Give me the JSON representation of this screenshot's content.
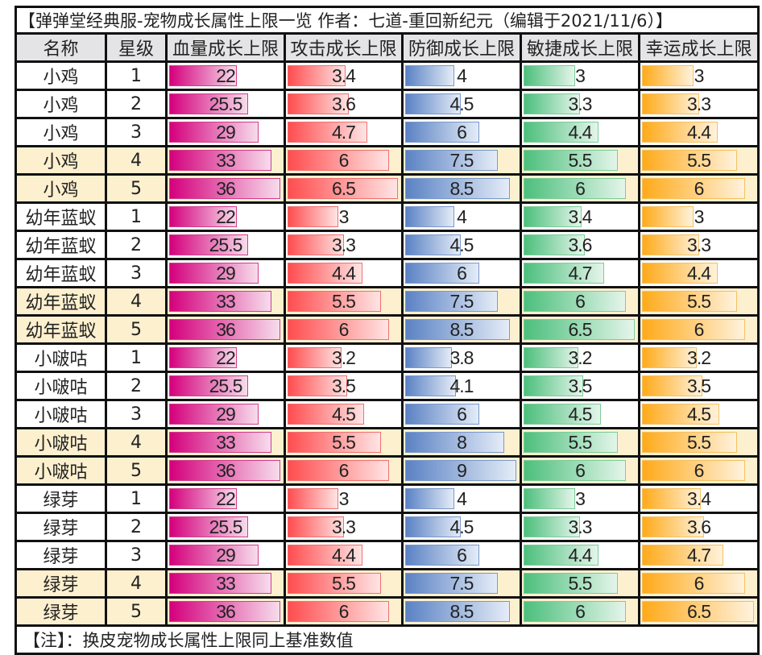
{
  "title": "【弹弹堂经典服-宠物成长属性上限一览 作者：七道-重回新纪元（编辑于2021/11/6）】",
  "headers": [
    "名称",
    "星级",
    "血量成长上限",
    "攻击成长上限",
    "防御成长上限",
    "敏捷成长上限",
    "幸运成长上限"
  ],
  "bar_colors": [
    {
      "start": "#d4007c",
      "end": "#f7dcec",
      "border": "#d23c88"
    },
    {
      "start": "#ff4d4f",
      "end": "#ffe4e4",
      "border": "#f07070"
    },
    {
      "start": "#5b82c4",
      "end": "#e4ecf7",
      "border": "#7a98cc"
    },
    {
      "start": "#4cbf7c",
      "end": "#e4f5ea",
      "border": "#7ccc98"
    },
    {
      "start": "#ffaa1a",
      "end": "#fff2dc",
      "border": "#f5c060"
    }
  ],
  "highlight_color": "#fdf0cf",
  "rows": [
    [
      "小鸡",
      "1",
      "22",
      "3.4",
      "4",
      "3",
      "3"
    ],
    [
      "小鸡",
      "2",
      "25.5",
      "3.6",
      "4.5",
      "3.3",
      "3.3"
    ],
    [
      "小鸡",
      "3",
      "29",
      "4.7",
      "6",
      "4.4",
      "4.4"
    ],
    [
      "小鸡",
      "4",
      "33",
      "6",
      "7.5",
      "5.5",
      "5.5"
    ],
    [
      "小鸡",
      "5",
      "36",
      "6.5",
      "8.5",
      "6",
      "6"
    ],
    [
      "幼年蓝蚁",
      "1",
      "22",
      "3",
      "4",
      "3.4",
      "3"
    ],
    [
      "幼年蓝蚁",
      "2",
      "25.5",
      "3.3",
      "4.5",
      "3.6",
      "3.3"
    ],
    [
      "幼年蓝蚁",
      "3",
      "29",
      "4.4",
      "6",
      "4.7",
      "4.4"
    ],
    [
      "幼年蓝蚁",
      "4",
      "33",
      "5.5",
      "7.5",
      "6",
      "5.5"
    ],
    [
      "幼年蓝蚁",
      "5",
      "36",
      "6",
      "8.5",
      "6.5",
      "6"
    ],
    [
      "小啵咕",
      "1",
      "22",
      "3.2",
      "3.8",
      "3.2",
      "3.2"
    ],
    [
      "小啵咕",
      "2",
      "25.5",
      "3.5",
      "4.1",
      "3.5",
      "3.5"
    ],
    [
      "小啵咕",
      "3",
      "29",
      "4.5",
      "6",
      "4.5",
      "4.5"
    ],
    [
      "小啵咕",
      "4",
      "33",
      "5.5",
      "8",
      "5.5",
      "5.5"
    ],
    [
      "小啵咕",
      "5",
      "36",
      "6",
      "9",
      "6",
      "6"
    ],
    [
      "绿芽",
      "1",
      "22",
      "3",
      "4",
      "3",
      "3.4"
    ],
    [
      "绿芽",
      "2",
      "25.5",
      "3.3",
      "4.5",
      "3.3",
      "3.6"
    ],
    [
      "绿芽",
      "3",
      "29",
      "4.4",
      "6",
      "4.4",
      "4.7"
    ],
    [
      "绿芽",
      "4",
      "33",
      "5.5",
      "7.5",
      "5.5",
      "6"
    ],
    [
      "绿芽",
      "5",
      "36",
      "6",
      "8.5",
      "6",
      "6.5"
    ]
  ],
  "note": "【注】：换皮宠物成长属性上限同上基准数值"
}
